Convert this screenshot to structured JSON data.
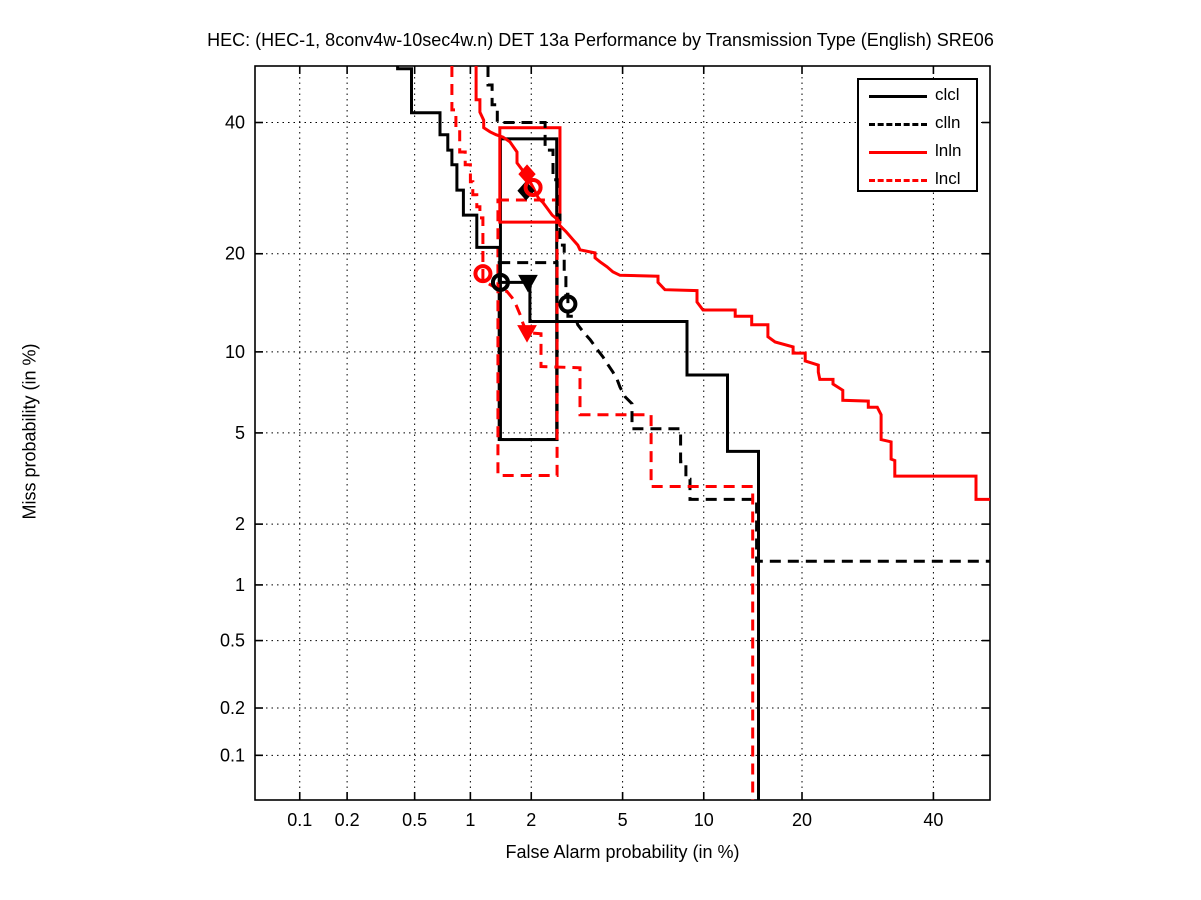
{
  "title": "HEC: (HEC-1, 8conv4w-10sec4w.n) DET 13a Performance by Transmission Type (English) SRE06",
  "legend": {
    "position": "top-right",
    "entries": [
      {
        "label": "clcl",
        "color": "#000000",
        "style": "solid"
      },
      {
        "label": "clln",
        "color": "#000000",
        "style": "dashed"
      },
      {
        "label": "lnln",
        "color": "#ff0000",
        "style": "solid"
      },
      {
        "label": "lncl",
        "color": "#ff0000",
        "style": "dashed"
      }
    ]
  },
  "chart_data": {
    "type": "line",
    "subtype": "DET curve (normal-deviate / probit scale on both axes)",
    "title": "HEC: (HEC-1, 8conv4w-10sec4w.n) DET 13a Performance by Transmission Type (English) SRE06",
    "xlabel": "False Alarm probability (in %)",
    "ylabel": "Miss probability (in %)",
    "xlim": [
      0.05,
      50
    ],
    "ylim": [
      0.05,
      50
    ],
    "xticks": [
      0.1,
      0.2,
      0.5,
      1,
      2,
      5,
      10,
      20,
      40
    ],
    "yticks": [
      0.1,
      0.2,
      0.5,
      1,
      2,
      5,
      10,
      20,
      40
    ],
    "grid": true,
    "legend_position": "top-right",
    "series": [
      {
        "name": "clcl",
        "color": "#000000",
        "style": "solid",
        "points": [
          [
            0.4,
            50
          ],
          [
            0.4,
            49.5
          ],
          [
            0.48,
            49.5
          ],
          [
            0.48,
            41.7
          ],
          [
            0.69,
            41.7
          ],
          [
            0.69,
            37.9
          ],
          [
            0.76,
            37.9
          ],
          [
            0.76,
            35.3
          ],
          [
            0.8,
            35.3
          ],
          [
            0.8,
            32.9
          ],
          [
            0.85,
            32.9
          ],
          [
            0.85,
            28.9
          ],
          [
            0.92,
            28.9
          ],
          [
            0.92,
            25.2
          ],
          [
            1.08,
            25.2
          ],
          [
            1.08,
            20.8
          ],
          [
            1.41,
            20.8
          ],
          [
            1.41,
            16.6
          ],
          [
            1.97,
            16.6
          ],
          [
            1.97,
            12.6
          ],
          [
            8.75,
            12.6
          ],
          [
            8.75,
            8.3
          ],
          [
            12.0,
            8.3
          ],
          [
            12.0,
            4.2
          ],
          [
            15.0,
            4.2
          ],
          [
            15.0,
            0.05
          ]
        ]
      },
      {
        "name": "clln",
        "color": "#000000",
        "style": "dashed",
        "points": [
          [
            1.23,
            50
          ],
          [
            1.23,
            46.6
          ],
          [
            1.29,
            46.6
          ],
          [
            1.29,
            43.1
          ],
          [
            1.37,
            43.1
          ],
          [
            1.37,
            40.0
          ],
          [
            2.32,
            40.0
          ],
          [
            2.32,
            35.3
          ],
          [
            2.52,
            35.3
          ],
          [
            2.52,
            30.5
          ],
          [
            2.63,
            30.5
          ],
          [
            2.63,
            25.2
          ],
          [
            2.71,
            25.2
          ],
          [
            2.71,
            21.1
          ],
          [
            2.83,
            21.1
          ],
          [
            2.83,
            17.5
          ],
          [
            2.88,
            17.5
          ],
          [
            2.88,
            15.3
          ],
          [
            2.94,
            15.3
          ],
          [
            2.94,
            13.1
          ],
          [
            3.16,
            13.1
          ],
          [
            3.25,
            12.3
          ],
          [
            3.45,
            11.6
          ],
          [
            3.67,
            11.0
          ],
          [
            3.93,
            10.2
          ],
          [
            4.16,
            9.6
          ],
          [
            4.37,
            9.0
          ],
          [
            4.57,
            8.5
          ],
          [
            4.75,
            8.0
          ],
          [
            4.88,
            7.5
          ],
          [
            5.12,
            6.9
          ],
          [
            5.45,
            6.5
          ],
          [
            5.45,
            5.2
          ],
          [
            8.3,
            5.2
          ],
          [
            8.3,
            3.8
          ],
          [
            8.67,
            3.8
          ],
          [
            8.67,
            3.2
          ],
          [
            8.96,
            3.2
          ],
          [
            8.96,
            2.6
          ],
          [
            14.8,
            2.6
          ],
          [
            14.8,
            1.32
          ],
          [
            50,
            1.32
          ]
        ]
      },
      {
        "name": "lnln",
        "color": "#ff0000",
        "style": "solid",
        "points": [
          [
            1.07,
            50
          ],
          [
            1.07,
            44.0
          ],
          [
            1.12,
            44.0
          ],
          [
            1.12,
            41.8
          ],
          [
            1.17,
            40.4
          ],
          [
            1.17,
            39.1
          ],
          [
            1.26,
            38.4
          ],
          [
            1.35,
            37.9
          ],
          [
            1.46,
            37.5
          ],
          [
            1.58,
            36.7
          ],
          [
            1.71,
            35.0
          ],
          [
            1.71,
            33.2
          ],
          [
            1.81,
            32.1
          ],
          [
            1.91,
            31.1
          ],
          [
            2.04,
            29.3
          ],
          [
            2.16,
            27.7
          ],
          [
            2.27,
            27.0
          ],
          [
            2.37,
            26.2
          ],
          [
            2.5,
            25.2
          ],
          [
            2.66,
            24.5
          ],
          [
            2.71,
            23.7
          ],
          [
            2.88,
            22.9
          ],
          [
            3.1,
            21.8
          ],
          [
            3.25,
            21.1
          ],
          [
            3.32,
            20.5
          ],
          [
            3.85,
            20.1
          ],
          [
            3.85,
            19.5
          ],
          [
            4.04,
            19.0
          ],
          [
            4.32,
            18.4
          ],
          [
            4.57,
            17.8
          ],
          [
            4.88,
            17.4
          ],
          [
            6.86,
            17.3
          ],
          [
            6.86,
            16.6
          ],
          [
            7.28,
            15.8
          ],
          [
            9.48,
            15.7
          ],
          [
            9.48,
            14.5
          ],
          [
            9.94,
            13.7
          ],
          [
            12.7,
            13.7
          ],
          [
            12.7,
            13.1
          ],
          [
            14.3,
            13.1
          ],
          [
            14.3,
            12.3
          ],
          [
            16.0,
            12.3
          ],
          [
            16.0,
            11.25
          ],
          [
            16.8,
            10.8
          ],
          [
            18.9,
            10.4
          ],
          [
            18.9,
            9.9
          ],
          [
            20.4,
            9.9
          ],
          [
            20.4,
            9.3
          ],
          [
            21.0,
            9.2
          ],
          [
            22.1,
            9.0
          ],
          [
            22.1,
            8.5
          ],
          [
            22.3,
            8.0
          ],
          [
            24.1,
            8.0
          ],
          [
            24.1,
            7.7
          ],
          [
            25.5,
            7.3
          ],
          [
            25.5,
            6.7
          ],
          [
            29.3,
            6.65
          ],
          [
            29.3,
            6.3
          ],
          [
            30.7,
            6.3
          ],
          [
            31.3,
            5.9
          ],
          [
            31.3,
            4.7
          ],
          [
            32.9,
            4.6
          ],
          [
            32.9,
            3.9
          ],
          [
            33.5,
            3.85
          ],
          [
            33.5,
            3.3
          ],
          [
            47.5,
            3.3
          ],
          [
            47.5,
            2.6
          ],
          [
            50,
            2.6
          ]
        ]
      },
      {
        "name": "lncl",
        "color": "#ff0000",
        "style": "dashed",
        "points": [
          [
            0.8,
            50
          ],
          [
            0.8,
            42.2
          ],
          [
            0.84,
            42.2
          ],
          [
            0.84,
            38.7
          ],
          [
            0.88,
            38.7
          ],
          [
            0.88,
            35.0
          ],
          [
            0.94,
            35.0
          ],
          [
            0.94,
            32.9
          ],
          [
            1.0,
            32.9
          ],
          [
            1.0,
            30.2
          ],
          [
            1.03,
            30.2
          ],
          [
            1.03,
            28.2
          ],
          [
            1.08,
            28.2
          ],
          [
            1.08,
            26.4
          ],
          [
            1.12,
            26.4
          ],
          [
            1.12,
            24.8
          ],
          [
            1.16,
            24.8
          ],
          [
            1.16,
            18.05
          ],
          [
            1.16,
            16.9
          ],
          [
            1.26,
            16.35
          ],
          [
            1.41,
            15.8
          ],
          [
            1.53,
            15.6
          ],
          [
            1.62,
            14.95
          ],
          [
            1.69,
            14.24
          ],
          [
            1.77,
            13.25
          ],
          [
            1.83,
            12.4
          ],
          [
            1.91,
            11.6
          ],
          [
            2.22,
            11.5
          ],
          [
            2.22,
            8.9
          ],
          [
            3.32,
            8.8
          ],
          [
            3.32,
            5.9
          ],
          [
            6.46,
            5.9
          ],
          [
            6.46,
            2.97
          ],
          [
            14.4,
            2.97
          ],
          [
            14.4,
            0.05
          ]
        ]
      }
    ],
    "markers": [
      {
        "series": "clcl",
        "shape": "circle",
        "color": "#000000",
        "fa": 1.42,
        "miss": 16.6
      },
      {
        "series": "clcl",
        "shape": "triangle-down",
        "color": "#000000",
        "fa": 1.93,
        "miss": 16.6
      },
      {
        "series": "clln",
        "shape": "diamond",
        "color": "#000000",
        "fa": 1.89,
        "miss": 28.8
      },
      {
        "series": "clln",
        "shape": "circle",
        "color": "#000000",
        "fa": 2.94,
        "miss": 14.3
      },
      {
        "series": "lnln",
        "shape": "diamond",
        "color": "#ff0000",
        "fa": 1.91,
        "miss": 31.4
      },
      {
        "series": "lnln",
        "shape": "circle",
        "color": "#ff0000",
        "fa": 2.04,
        "miss": 29.3
      },
      {
        "series": "lncl",
        "shape": "circle",
        "color": "#ff0000",
        "fa": 1.16,
        "miss": 17.6
      },
      {
        "series": "lncl",
        "shape": "triangle-down",
        "color": "#ff0000",
        "fa": 1.91,
        "miss": 11.6
      }
    ],
    "boxes": [
      {
        "series": "clcl",
        "color": "#000000",
        "style": "solid",
        "fa": [
          1.42,
          2.62
        ],
        "miss": [
          4.7,
          37.2
        ]
      },
      {
        "series": "clln",
        "color": "#000000",
        "style": "dashed",
        "fa": [
          1.4,
          2.63
        ],
        "miss": [
          4.7,
          18.9
        ]
      },
      {
        "series": "lnln",
        "color": "#ff0000",
        "style": "solid",
        "fa": [
          1.41,
          2.71
        ],
        "miss": [
          24.2,
          39.1
        ]
      },
      {
        "series": "lncl",
        "color": "#ff0000",
        "style": "dashed",
        "fa": [
          1.38,
          2.63
        ],
        "miss": [
          3.32,
          27.4
        ]
      }
    ]
  }
}
